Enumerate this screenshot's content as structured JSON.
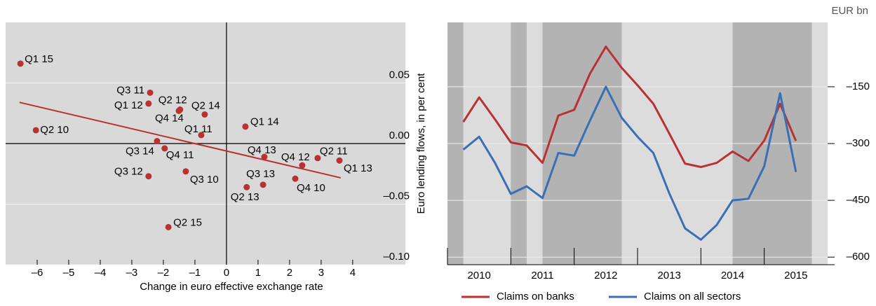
{
  "chart_data": [
    {
      "type": "scatter",
      "xlabel": "Change in euro effective exchange rate",
      "ylabel": "Euro lending flows, in per cent",
      "xlim": [
        -7,
        5.67
      ],
      "ylim": [
        -0.1,
        0.1
      ],
      "xticks": [
        {
          "value": -6,
          "label": "–6"
        },
        {
          "value": -5,
          "label": "–5"
        },
        {
          "value": -4,
          "label": "–4"
        },
        {
          "value": -3,
          "label": "–3"
        },
        {
          "value": -2,
          "label": "–2"
        },
        {
          "value": -1,
          "label": "–1"
        },
        0,
        1,
        2,
        3,
        4
      ],
      "yticks": [
        {
          "value": 0.05,
          "label": "0.05"
        },
        {
          "value": 0,
          "label": "0.00"
        },
        {
          "value": -0.05,
          "label": "–0.05"
        },
        {
          "value": -0.1,
          "label": "–0.10"
        }
      ],
      "color": "#b83232",
      "labels": [
        "Q1 15",
        "Q3 11",
        "Q1 12",
        "Q2 12",
        "Q2 14",
        "Q4 14",
        "Q1 11",
        "Q1 14",
        "Q2 10",
        "Q3 14",
        "Q4 11",
        "Q3 12",
        "Q3 10",
        "Q4 13",
        "Q4 12",
        "Q2 11",
        "Q1 13",
        "Q3 13",
        "Q2 13",
        "Q4 10",
        "Q2 15"
      ],
      "x": [
        -6.53,
        -2.42,
        -2.47,
        -1.47,
        -0.69,
        -1.51,
        -0.8,
        0.6,
        -6.04,
        -2.2,
        -1.96,
        -2.47,
        -1.29,
        1.2,
        2.4,
        2.89,
        3.58,
        1.16,
        0.64,
        2.18,
        -1.84
      ],
      "y": [
        0.066,
        0.042,
        0.033,
        0.028,
        0.024,
        0.027,
        0.007,
        0.014,
        0.011,
        0.002,
        -0.004,
        -0.027,
        -0.023,
        -0.011,
        -0.018,
        -0.012,
        -0.014,
        -0.034,
        -0.036,
        -0.029,
        -0.069
      ],
      "trend": {
        "x": [
          -6.56,
          3.62
        ],
        "y": [
          0.034,
          -0.0283
        ]
      }
    },
    {
      "type": "line",
      "unit": "EUR bn",
      "xlim": [
        2010,
        2016
      ],
      "ylim": [
        -620,
        20
      ],
      "xticks": [
        2010,
        2011,
        2012,
        2013,
        2014,
        2015
      ],
      "yticks": [
        {
          "value": -150,
          "label": "–150"
        },
        {
          "value": -300,
          "label": "–300"
        },
        {
          "value": -450,
          "label": "–450"
        },
        {
          "value": -600,
          "label": "–600"
        }
      ],
      "shaded": [
        [
          2010,
          2010.25
        ],
        [
          2011,
          2011.25
        ],
        [
          2011.5,
          2012.75
        ],
        [
          2014.5,
          2015.75
        ]
      ],
      "x": [
        2010.25,
        2010.5,
        2010.75,
        2011,
        2011.25,
        2011.5,
        2011.75,
        2012,
        2012.25,
        2012.5,
        2012.75,
        2013,
        2013.25,
        2013.5,
        2013.75,
        2014,
        2014.25,
        2014.5,
        2014.75,
        2015,
        2015.25,
        2015.5
      ],
      "series": [
        {
          "name": "Claims on banks",
          "color": "#b83232",
          "values": [
            -243,
            -178,
            -236,
            -297,
            -305,
            -351,
            -226,
            -211,
            -115,
            -44,
            -100,
            -146,
            -195,
            -273,
            -353,
            -362,
            -351,
            -321,
            -346,
            -292,
            -195,
            -293
          ]
        },
        {
          "name": "Claims on all sectors",
          "color": "#3a6fb5",
          "values": [
            -316,
            -282,
            -351,
            -433,
            -413,
            -444,
            -325,
            -332,
            -239,
            -150,
            -232,
            -282,
            -325,
            -431,
            -524,
            -554,
            -515,
            -450,
            -446,
            -360,
            -167,
            -375
          ]
        }
      ]
    }
  ]
}
